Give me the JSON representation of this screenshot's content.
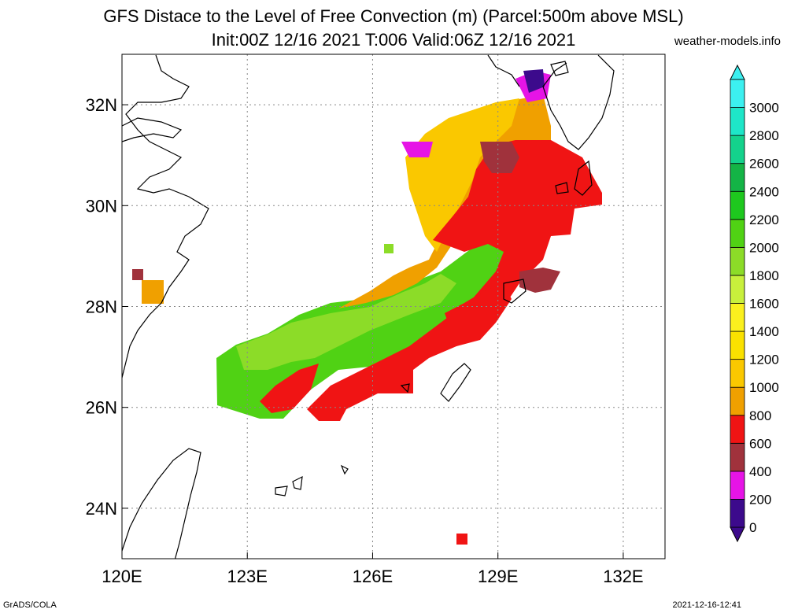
{
  "header": {
    "title_line1": "GFS Distace to the Level of Free Convection (m) (Parcel:500m above MSL)",
    "title_line2": "Init:00Z 12/16 2021 T:006 Valid:06Z 12/16 2021",
    "site": "weather-models.info"
  },
  "footer": {
    "left": "GrADS/COLA",
    "right": "2021-12-16-12:41"
  },
  "map": {
    "lon_range": [
      120,
      133
    ],
    "lat_range": [
      23,
      33
    ],
    "lon_ticks": [
      {
        "value": 120,
        "label": "120E"
      },
      {
        "value": 123,
        "label": "123E"
      },
      {
        "value": 126,
        "label": "126E"
      },
      {
        "value": 129,
        "label": "129E"
      },
      {
        "value": 132,
        "label": "132E"
      }
    ],
    "lat_ticks": [
      {
        "value": 24,
        "label": "24N"
      },
      {
        "value": 26,
        "label": "26N"
      },
      {
        "value": 28,
        "label": "28N"
      },
      {
        "value": 30,
        "label": "30N"
      },
      {
        "value": 32,
        "label": "32N"
      }
    ],
    "grid": true
  },
  "colorbar": {
    "levels": [
      "0",
      "200",
      "400",
      "600",
      "800",
      "1000",
      "1200",
      "1400",
      "1600",
      "1800",
      "2000",
      "2200",
      "2400",
      "2600",
      "2800",
      "3000"
    ],
    "colors": [
      "#3c0a8c",
      "#e614e6",
      "#a0323c",
      "#f01414",
      "#f0a000",
      "#fac800",
      "#fae100",
      "#faf01e",
      "#c8f03c",
      "#8cdc28",
      "#50d214",
      "#1ec81e",
      "#14b446",
      "#14d28c",
      "#1ee6c8",
      "#3cf0f0"
    ],
    "triangle_low_color": "#3c0a8c",
    "triangle_high_color": "#3cf0f0"
  }
}
